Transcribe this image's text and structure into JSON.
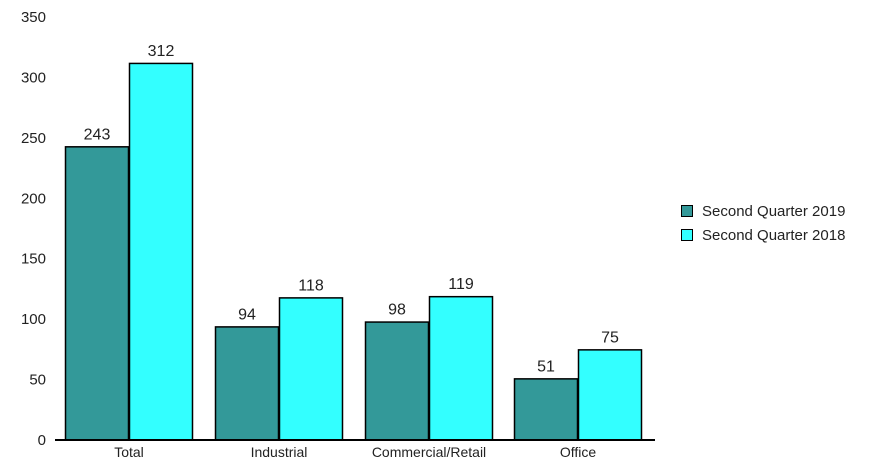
{
  "chart_data": {
    "type": "bar",
    "title": "",
    "xlabel": "",
    "ylabel": "",
    "categories": [
      "Total",
      "Industrial",
      "Commercial/Retail",
      "Office"
    ],
    "series": [
      {
        "name": "Second Quarter 2019",
        "values": [
          243,
          94,
          98,
          51
        ],
        "color": "#339999"
      },
      {
        "name": "Second Quarter 2018",
        "values": [
          312,
          118,
          119,
          75
        ],
        "color": "#33ffff"
      }
    ],
    "ylim": [
      0,
      350
    ],
    "yticks": [
      0,
      50,
      100,
      150,
      200,
      250,
      300,
      350
    ],
    "grid": false,
    "legend_position": "right"
  }
}
